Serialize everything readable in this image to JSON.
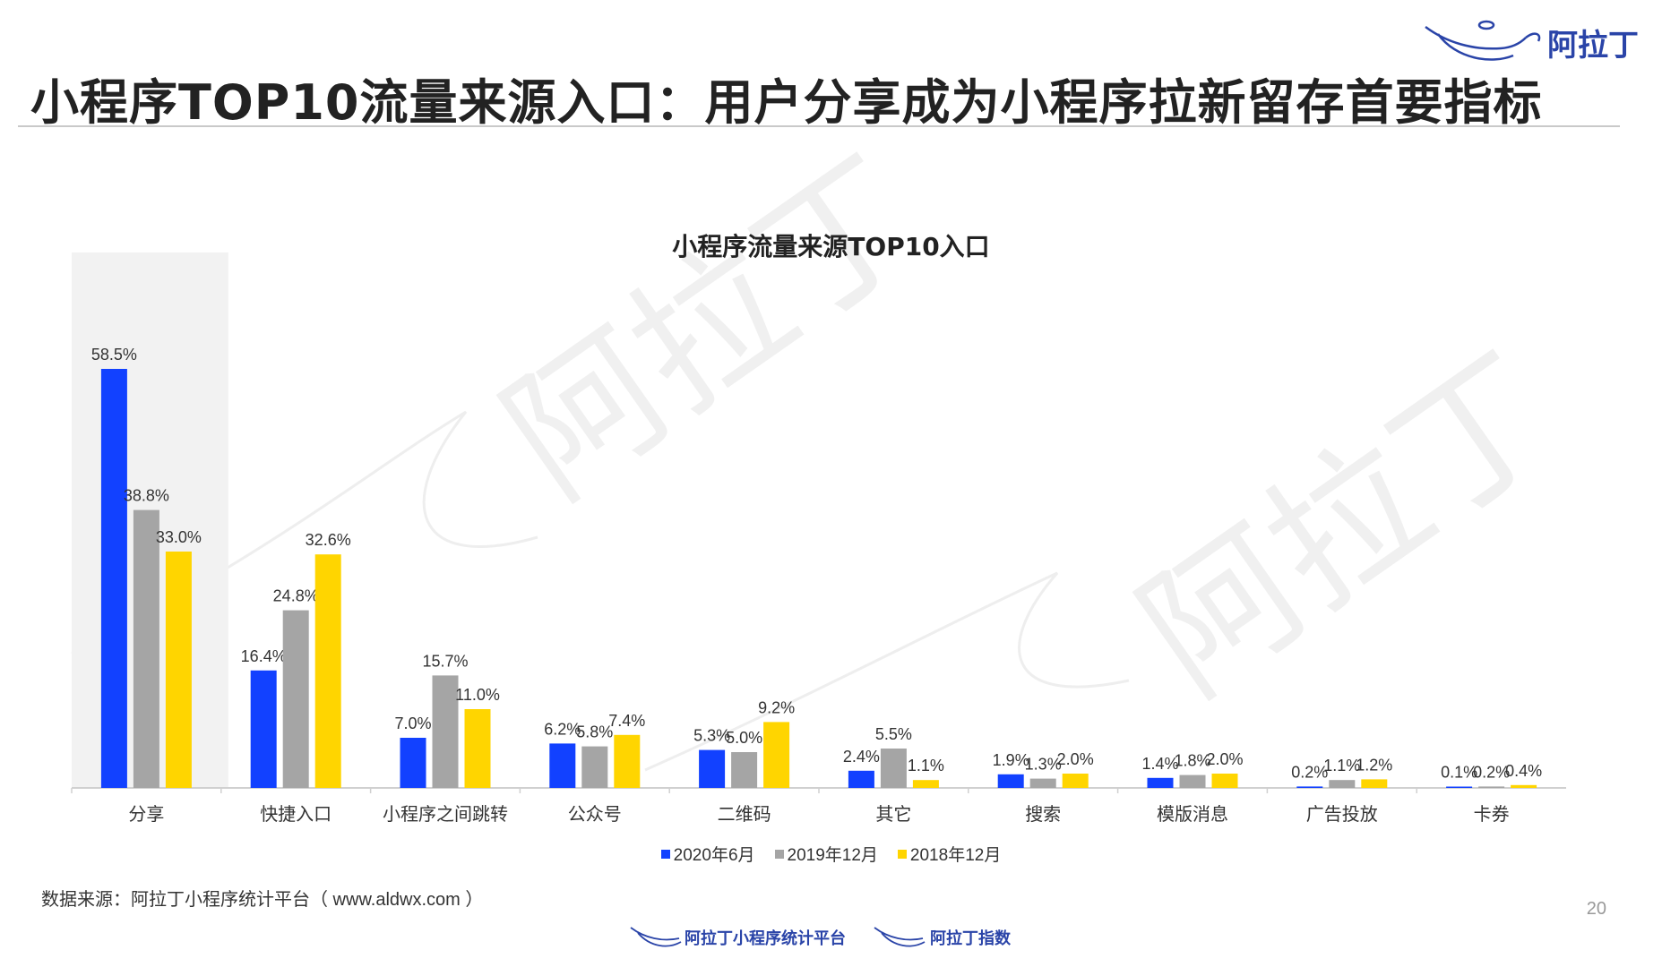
{
  "header": {
    "title": "小程序TOP10流量来源入口：用户分享成为小程序拉新留存首要指标",
    "brand_text": "阿拉丁"
  },
  "watermark": {
    "text": "阿拉丁"
  },
  "chart_data": {
    "type": "bar",
    "title": "小程序流量来源TOP10入口",
    "categories": [
      "分享",
      "快捷入口",
      "小程序之间跳转",
      "公众号",
      "二维码",
      "其它",
      "搜索",
      "模版消息",
      "广告投放",
      "卡券"
    ],
    "series": [
      {
        "name": "2020年6月",
        "color": "#1241ff",
        "values": [
          58.5,
          16.4,
          7.0,
          6.2,
          5.3,
          2.4,
          1.9,
          1.4,
          0.2,
          0.1
        ],
        "labels": [
          "58.5%",
          "16.4%",
          "7.0%",
          "6.2%",
          "5.3%",
          "2.4%",
          "1.9%",
          "1.4%",
          "0.2%",
          "0.1%"
        ]
      },
      {
        "name": "2019年12月",
        "color": "#a5a5a5",
        "values": [
          38.8,
          24.8,
          15.7,
          5.8,
          5.0,
          5.5,
          1.3,
          1.8,
          1.1,
          0.2
        ],
        "labels": [
          "38.8%",
          "24.8%",
          "15.7%",
          "5.8%",
          "5.0%",
          "5.5%",
          "1.3%",
          "1.8%",
          "1.1%",
          "0.2%"
        ]
      },
      {
        "name": "2018年12月",
        "color": "#ffd500",
        "values": [
          33.0,
          32.6,
          11.0,
          7.4,
          9.2,
          1.1,
          2.0,
          2.0,
          1.2,
          0.4
        ],
        "labels": [
          "33.0%",
          "32.6%",
          "11.0%",
          "7.4%",
          "9.2%",
          "1.1%",
          "2.0%",
          "2.0%",
          "1.2%",
          "0.4%"
        ]
      }
    ],
    "ylim": [
      0,
      60
    ],
    "highlight_category": "分享",
    "highlight_color": "#f2f2f2",
    "legend_position": "bottom",
    "grid": false
  },
  "footer": {
    "source": "数据来源：阿拉丁小程序统计平台（ www.aldwx.com ）",
    "page_number": "20",
    "logo_left": "阿拉丁小程序统计平台",
    "logo_right": "阿拉丁指数"
  },
  "colors": {
    "accent": "#2a44a8",
    "rule": "#c9c9c9"
  }
}
